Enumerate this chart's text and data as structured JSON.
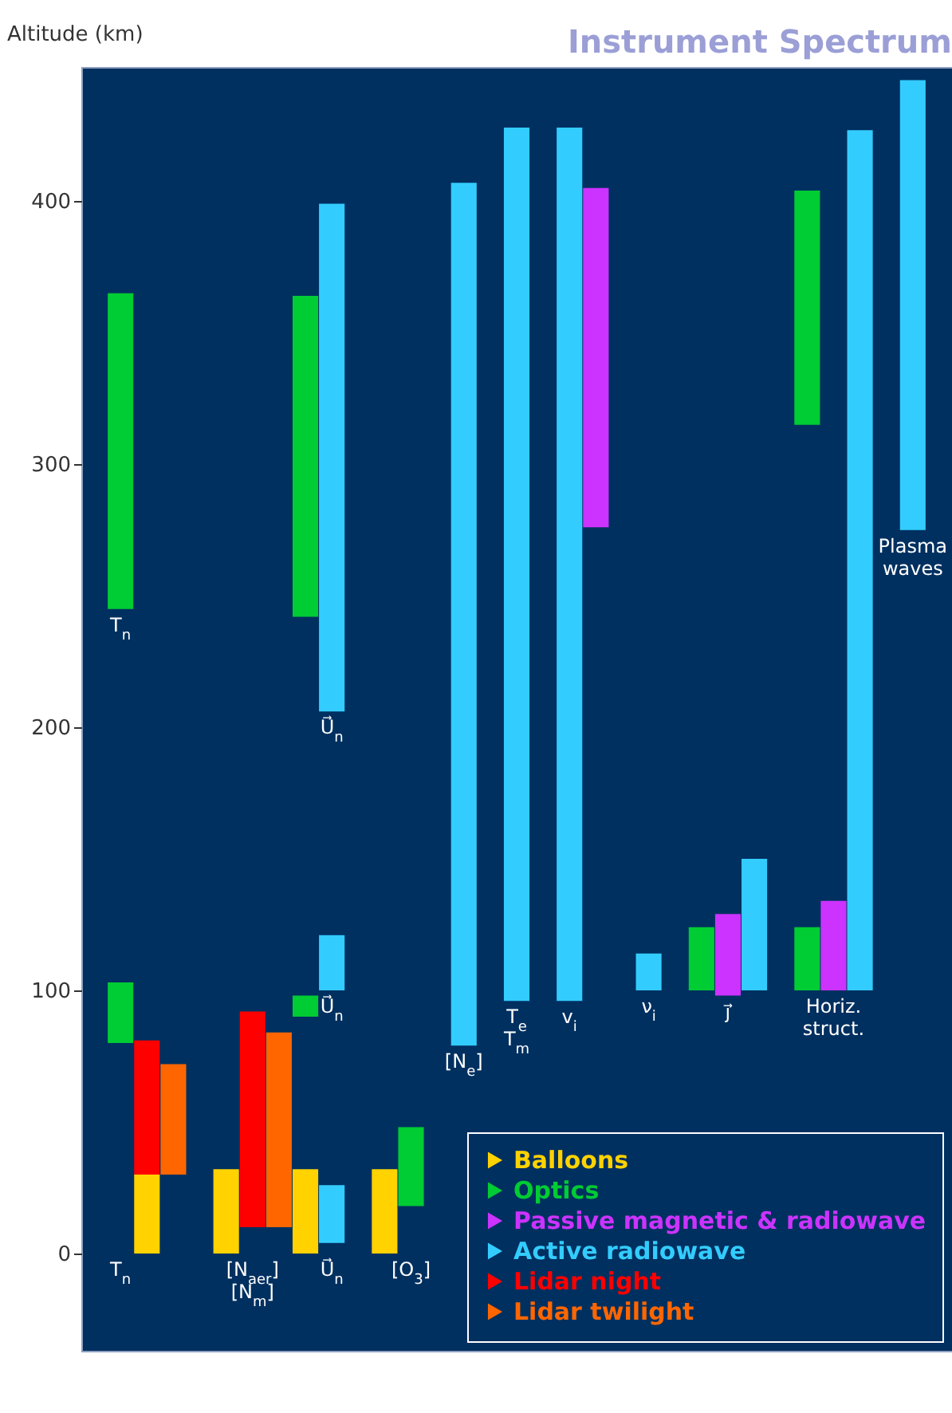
{
  "chart_data": {
    "type": "bar",
    "title": "Instrument Spectrum",
    "ylabel": "Altitude (km)",
    "categories": [
      "T$_{n}$",
      null,
      null,
      null,
      null,
      "[N$_{aer}$]\n[N$_{m}$]",
      null,
      null,
      "U⃗$_{n}$",
      null,
      null,
      "[O$_{3}$]",
      null,
      "[N$_{e}$]",
      null,
      "T$_{e}$\nT$_{m}$",
      null,
      "v$_{i}$",
      null,
      null,
      "ν$_{i}$",
      null,
      null,
      "j⃗",
      null,
      null,
      null,
      "Horiz.\nstruct.",
      null,
      null,
      "Plasma\nwaves"
    ],
    "series": [
      {
        "name": "Balloons",
        "color": "#ffd200",
        "values": [
          null,
          30,
          null,
          null,
          32,
          null,
          null,
          32,
          null,
          null,
          32,
          null,
          null,
          null,
          null,
          null,
          null,
          null,
          null,
          null,
          null,
          null,
          null,
          null,
          null,
          null,
          null,
          null,
          null,
          null,
          null
        ],
        "base": [
          null,
          0,
          null,
          null,
          0,
          null,
          null,
          0,
          null,
          null,
          0,
          null,
          null,
          null,
          null,
          null,
          null,
          null,
          null,
          null,
          null,
          null,
          null,
          null,
          null,
          null,
          null,
          null,
          null,
          null,
          null
        ]
      },
      {
        "name": "Optics",
        "color": "#00cc33",
        "values": [
          120,
          null,
          null,
          null,
          null,
          null,
          null,
          122,
          null,
          null,
          null,
          30,
          null,
          null,
          null,
          null,
          null,
          null,
          null,
          null,
          null,
          null,
          24,
          null,
          null,
          null,
          89,
          null,
          null,
          null,
          null
        ],
        "base": [
          245,
          null,
          null,
          null,
          null,
          null,
          null,
          242,
          null,
          null,
          null,
          18,
          null,
          null,
          null,
          null,
          null,
          null,
          null,
          null,
          null,
          null,
          100,
          null,
          null,
          null,
          315,
          null,
          null,
          null,
          null
        ]
      },
      {
        "color": "#00cc33",
        "values": [
          23,
          null,
          null,
          null,
          null,
          null,
          null,
          8,
          null,
          null,
          null,
          null,
          null,
          null,
          null,
          null,
          null,
          null,
          null,
          null,
          null,
          null,
          null,
          null,
          null,
          null,
          24,
          null,
          null,
          null,
          null
        ],
        "base": [
          80,
          null,
          null,
          null,
          null,
          null,
          null,
          90,
          null,
          null,
          null,
          null,
          null,
          null,
          null,
          null,
          null,
          null,
          null,
          null,
          null,
          null,
          null,
          null,
          null,
          null,
          100,
          null,
          null,
          null,
          null
        ]
      },
      {
        "name": "Passive magnetic & radiowave",
        "color": "#cc33ff",
        "values": [
          null,
          null,
          null,
          null,
          null,
          null,
          null,
          null,
          null,
          null,
          null,
          null,
          null,
          null,
          null,
          null,
          null,
          null,
          129,
          null,
          null,
          null,
          null,
          31,
          null,
          null,
          null,
          34,
          null,
          null,
          null
        ],
        "base": [
          null,
          null,
          null,
          null,
          null,
          null,
          null,
          null,
          null,
          null,
          null,
          null,
          null,
          null,
          null,
          null,
          null,
          null,
          276,
          null,
          null,
          null,
          null,
          98,
          null,
          null,
          null,
          100,
          null,
          null,
          null
        ]
      },
      {
        "name": "Active radiowave",
        "color": "#33ccff",
        "values": [
          null,
          null,
          null,
          null,
          null,
          null,
          null,
          null,
          193,
          null,
          null,
          null,
          null,
          328,
          null,
          332,
          null,
          332,
          null,
          null,
          14,
          null,
          null,
          null,
          50,
          null,
          null,
          null,
          327,
          null,
          171
        ],
        "base": [
          null,
          null,
          null,
          null,
          null,
          null,
          null,
          null,
          206,
          null,
          null,
          null,
          null,
          79,
          null,
          96,
          null,
          96,
          null,
          null,
          100,
          null,
          null,
          null,
          100,
          null,
          null,
          null,
          100,
          null,
          275
        ]
      },
      {
        "color": "#33ccff",
        "values": [
          null,
          null,
          null,
          null,
          null,
          null,
          null,
          null,
          21,
          null,
          null,
          null,
          null,
          null,
          null,
          null,
          null,
          null,
          null,
          null,
          null,
          null,
          null,
          null,
          null,
          null,
          null,
          null,
          null,
          null,
          null
        ],
        "base": [
          null,
          null,
          null,
          null,
          null,
          null,
          null,
          null,
          100,
          null,
          null,
          null,
          null,
          null,
          null,
          null,
          null,
          null,
          null,
          null,
          null,
          null,
          null,
          null,
          null,
          null,
          null,
          null,
          null,
          null,
          null
        ]
      },
      {
        "color": "#33ccff",
        "values": [
          null,
          null,
          null,
          null,
          null,
          null,
          null,
          null,
          22,
          null,
          null,
          null,
          null,
          null,
          null,
          null,
          null,
          null,
          null,
          null,
          null,
          null,
          null,
          null,
          null,
          null,
          null,
          null,
          null,
          null,
          null
        ],
        "base": [
          null,
          null,
          null,
          null,
          null,
          null,
          null,
          null,
          4,
          null,
          null,
          null,
          null,
          null,
          null,
          null,
          null,
          null,
          null,
          null,
          null,
          null,
          null,
          null,
          null,
          null,
          null,
          null,
          null,
          null,
          null
        ]
      },
      {
        "name": "Lidar night",
        "color": "#ff0000",
        "values": [
          null,
          51,
          null,
          null,
          null,
          82,
          null,
          null,
          null,
          null,
          null,
          null,
          null,
          null,
          null,
          null,
          null,
          null,
          null,
          null,
          null,
          null,
          null,
          null,
          null,
          null,
          null,
          null,
          null,
          null,
          null
        ],
        "base": [
          null,
          30,
          null,
          null,
          null,
          10,
          null,
          null,
          null,
          null,
          null,
          null,
          null,
          null,
          null,
          null,
          null,
          null,
          null,
          null,
          null,
          null,
          null,
          null,
          null,
          null,
          null,
          null,
          null,
          null,
          null
        ]
      },
      {
        "name": "Lidar twilight",
        "color": "#ff6600",
        "values": [
          null,
          null,
          42,
          null,
          null,
          null,
          74,
          null,
          null,
          null,
          null,
          null,
          null,
          null,
          null,
          null,
          null,
          null,
          null,
          null,
          null,
          null,
          null,
          null,
          null,
          null,
          null,
          null,
          null,
          null,
          null
        ],
        "base": [
          null,
          null,
          30,
          null,
          null,
          null,
          10,
          null,
          null,
          null,
          null,
          null,
          null,
          null,
          null,
          null,
          null,
          null,
          null,
          null,
          null,
          null,
          null,
          null,
          null,
          null,
          null,
          null,
          null,
          null,
          null
        ]
      }
    ],
    "annotations": [
      {
        "text": "T$_{n}$",
        "x": "T$_{n}$",
        "y": 245
      },
      {
        "text": "U⃗$_{n}$",
        "x": "U⃗$_{n}$",
        "y": 206
      },
      {
        "text": "U⃗$_{n}$",
        "x": "U⃗$_{n}$",
        "y": 100
      }
    ],
    "ylim": [
      -37,
      451
    ],
    "yticks": [
      0,
      100,
      200,
      300,
      400
    ],
    "legend": "bottom right"
  }
}
